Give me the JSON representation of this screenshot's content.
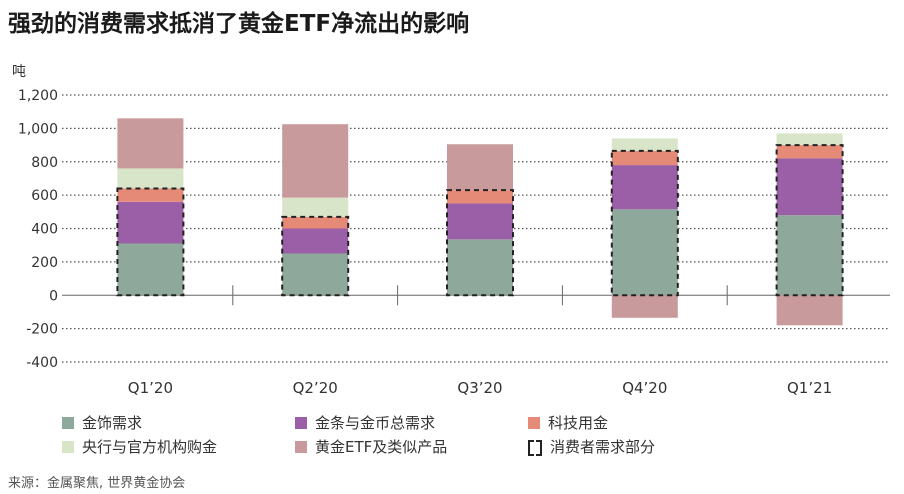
{
  "title": "强劲的消费需求抵消了黄金ETF净流出的影响",
  "source": "来源：金属聚焦, 世界黄金协会",
  "colors": {
    "jewellery": "#8fa89c",
    "bar_coin": "#9b5fa8",
    "technology": "#e68a78",
    "central_banks": "#d8e5c8",
    "etf": "#c99a9c",
    "consumer_box": "#222222"
  },
  "chart_data": {
    "type": "bar",
    "stacked": true,
    "ylabel": "吨",
    "ylim": [
      -400,
      1200
    ],
    "yticks": [
      -400,
      -200,
      0,
      200,
      400,
      600,
      800,
      1000,
      1200
    ],
    "ytick_labels": [
      "-400",
      "-200",
      "0",
      "200",
      "400",
      "600",
      "800",
      "1,000",
      "1,200"
    ],
    "grid": "horizontal-dotted",
    "categories": [
      "Q1’20",
      "Q2’20",
      "Q3’20",
      "Q4’20",
      "Q1’21"
    ],
    "series": [
      {
        "name": "金饰需求",
        "color_key": "jewellery",
        "values": [
          310,
          250,
          335,
          515,
          480
        ]
      },
      {
        "name": "金条与金币总需求",
        "color_key": "bar_coin",
        "values": [
          250,
          150,
          215,
          265,
          340
        ]
      },
      {
        "name": "科技用金",
        "color_key": "technology",
        "values": [
          80,
          70,
          80,
          85,
          80
        ]
      },
      {
        "name": "央行与官方机构购金",
        "color_key": "central_banks",
        "values": [
          120,
          115,
          0,
          75,
          70
        ]
      },
      {
        "name": "黄金ETF及类似产品",
        "color_key": "etf",
        "values": [
          300,
          440,
          275,
          -135,
          -180
        ]
      }
    ],
    "consumer_demand_box": {
      "name": "消费者需求部分",
      "values": [
        640,
        470,
        630,
        865,
        900
      ]
    }
  },
  "legend": {
    "items": [
      {
        "label": "金饰需求",
        "color_key": "jewellery"
      },
      {
        "label": "金条与金币总需求",
        "color_key": "bar_coin"
      },
      {
        "label": "科技用金",
        "color_key": "technology"
      },
      {
        "label": "央行与官方机构购金",
        "color_key": "central_banks"
      },
      {
        "label": "黄金ETF及类似产品",
        "color_key": "etf"
      },
      {
        "label": "消费者需求部分",
        "color_key": "consumer_box"
      }
    ]
  }
}
